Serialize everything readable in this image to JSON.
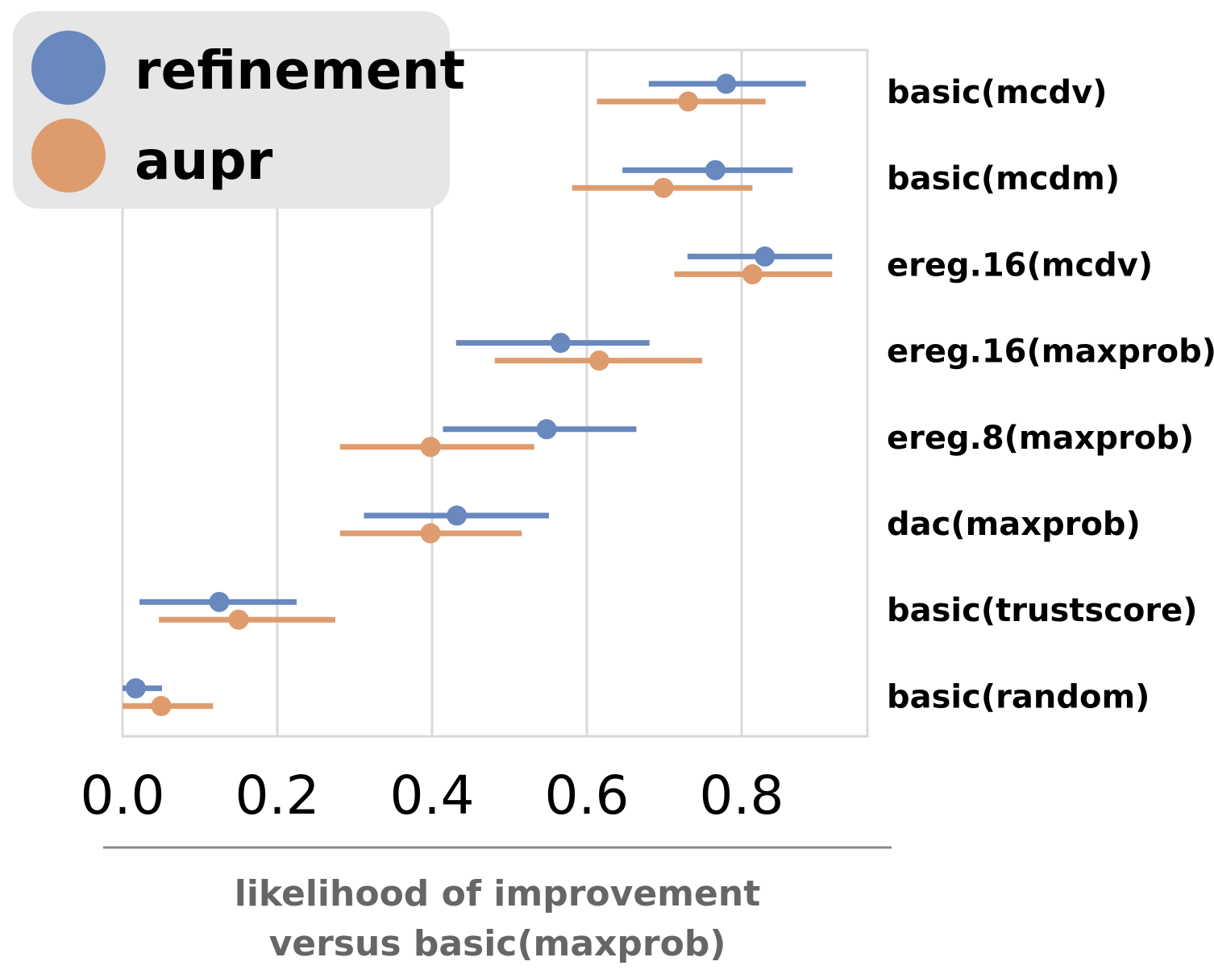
{
  "chart_data": {
    "type": "scatter",
    "orientation": "horizontal",
    "xlabel_lines": [
      "likelihood of improvement",
      "versus basic(maxprob)"
    ],
    "xticks": [
      "0.0",
      "0.2",
      "0.4",
      "0.6",
      "0.8"
    ],
    "xtick_values": [
      0.0,
      0.2,
      0.4,
      0.6,
      0.8
    ],
    "xlim": [
      0.0,
      0.96
    ],
    "grid": true,
    "legend_position": "top-left",
    "categories": [
      "basic(mcdv)",
      "basic(mcdm)",
      "ereg.16(mcdv)",
      "ereg.16(maxprob)",
      "ereg.8(maxprob)",
      "dac(maxprob)",
      "basic(trustscore)",
      "basic(random)"
    ],
    "series": [
      {
        "name": "refinement",
        "color": "#6888BE",
        "values": [
          0.78,
          0.766,
          0.83,
          0.566,
          0.548,
          0.432,
          0.125,
          0.017
        ],
        "lower": [
          0.68,
          0.646,
          0.73,
          0.431,
          0.414,
          0.312,
          0.022,
          0.0
        ],
        "upper": [
          0.883,
          0.866,
          0.917,
          0.681,
          0.664,
          0.551,
          0.225,
          0.051
        ]
      },
      {
        "name": "aupr",
        "color": "#DE9C6E",
        "values": [
          0.731,
          0.699,
          0.814,
          0.616,
          0.398,
          0.398,
          0.15,
          0.05
        ],
        "lower": [
          0.613,
          0.581,
          0.713,
          0.481,
          0.281,
          0.281,
          0.047,
          0.0
        ],
        "upper": [
          0.831,
          0.814,
          0.917,
          0.749,
          0.532,
          0.516,
          0.275,
          0.117
        ]
      }
    ]
  }
}
